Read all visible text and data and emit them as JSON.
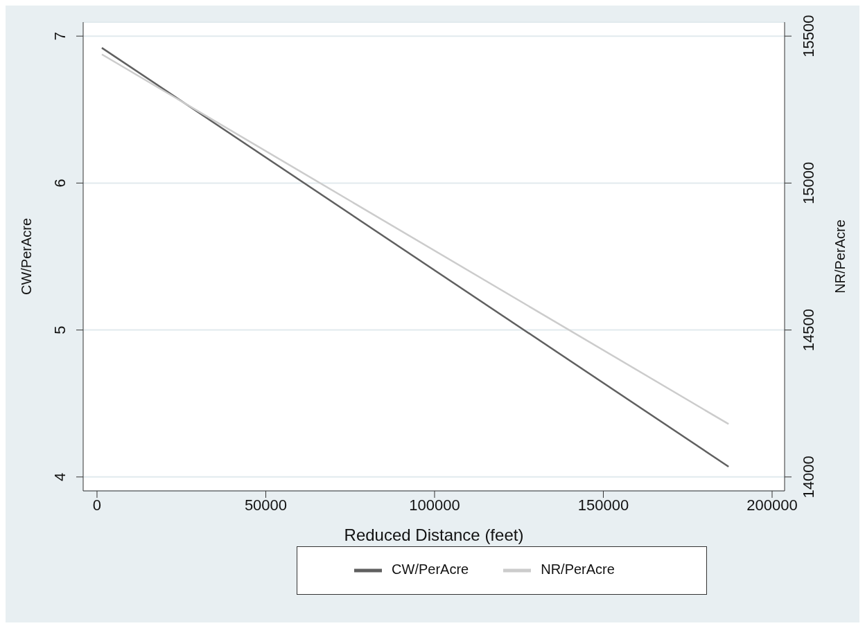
{
  "chart_data": {
    "type": "line",
    "xlabel": "Reduced Distance (feet)",
    "ylabel": "CW/PerAcre",
    "y2label": "NR/PerAcre",
    "xlim": [
      -4100,
      203700
    ],
    "xticks": [
      0,
      50000,
      100000,
      150000,
      200000
    ],
    "ylim": [
      3.905,
      7.095
    ],
    "yticks": [
      4,
      5,
      6,
      7
    ],
    "y2lim": [
      13952.5,
      15547.5
    ],
    "y2ticks": [
      14000,
      14500,
      15000,
      15500
    ],
    "x": [
      1430,
      187100
    ],
    "grid": "y",
    "legend": "bottom",
    "line_style": "solid",
    "marker": "none",
    "series": [
      {
        "name": "CW/PerAcre",
        "color": "#606060",
        "values": [
          6.92,
          4.07
        ]
      },
      {
        "name": "NR/PerAcre",
        "color": "#cccccc",
        "axis": "y2",
        "values": [
          15438,
          14180
        ]
      }
    ]
  }
}
